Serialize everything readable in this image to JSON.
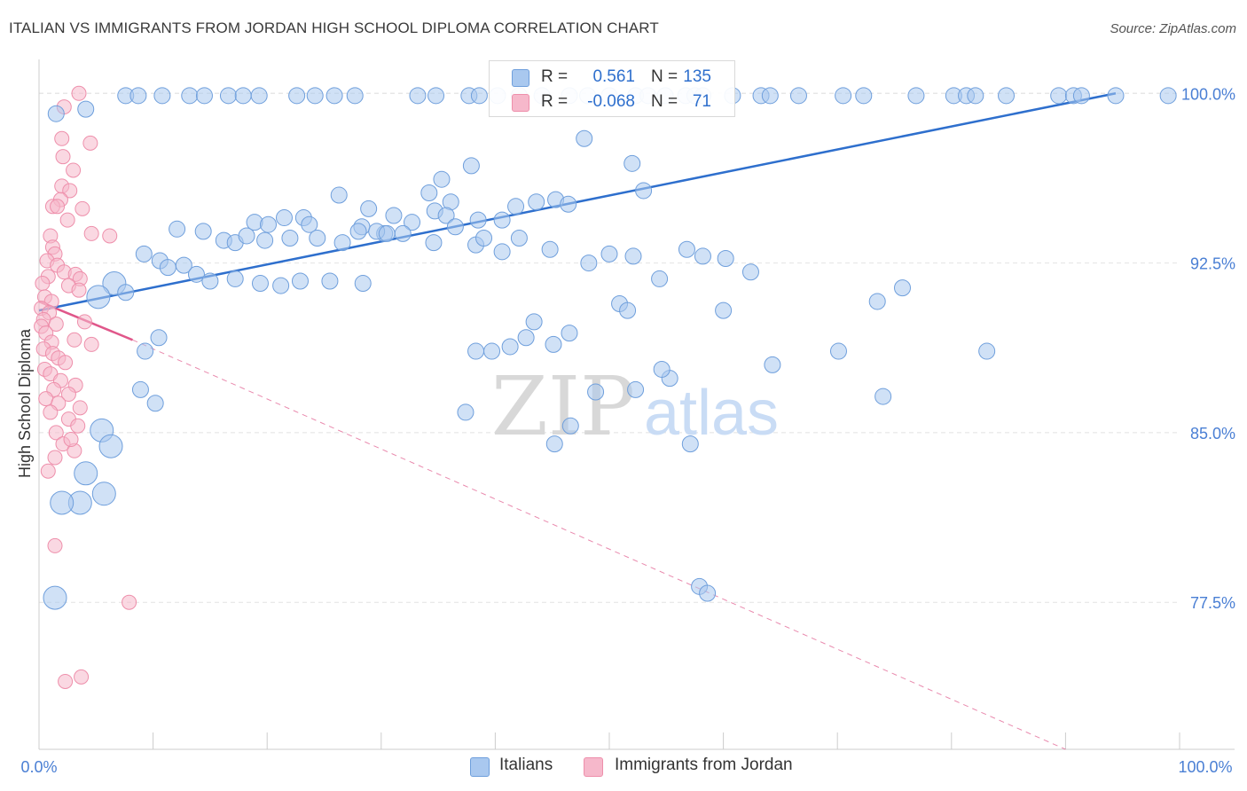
{
  "title": "ITALIAN VS IMMIGRANTS FROM JORDAN HIGH SCHOOL DIPLOMA CORRELATION CHART",
  "source": "Source: ZipAtlas.com",
  "watermark": {
    "zip": "ZIP",
    "atlas": "atlas"
  },
  "legend": {
    "r_label": "R =",
    "n_label": "N =",
    "rows": [
      {
        "r": "0.561",
        "n": "135"
      },
      {
        "r": "-0.068",
        "n": "71"
      }
    ]
  },
  "bottom_legend": [
    "Italians",
    "Immigrants from Jordan"
  ],
  "colors": {
    "blue_fill": "#a9c8ef",
    "blue_edge": "#6f9fdc",
    "blue_line": "#2e6fcd",
    "pink_fill": "#f6b8cb",
    "pink_edge": "#ee8fab",
    "pink_line": "#e0578a",
    "axis_text": "#4a7fd4",
    "grid": "#e2e2e2"
  },
  "chart_data": {
    "type": "scatter",
    "title": "ITALIAN VS IMMIGRANTS FROM JORDAN HIGH SCHOOL DIPLOMA CORRELATION CHART",
    "xlabel": "",
    "ylabel": "High School Diploma",
    "xlim": [
      0,
      100
    ],
    "ylim": [
      71.0,
      101.5
    ],
    "x_tick_labels": [
      "0.0%",
      "100.0%"
    ],
    "y_ticks": [
      77.5,
      85.0,
      92.5,
      100.0
    ],
    "y_tick_labels": [
      "77.5%",
      "85.0%",
      "92.5%",
      "100.0%"
    ],
    "grid": true,
    "legend_position": "top-center",
    "series": [
      {
        "name": "Italians",
        "r": 0.561,
        "n": 135,
        "trend": {
          "x": [
            0,
            94.4
          ],
          "y": [
            90.4,
            100.0
          ]
        },
        "points": [
          [
            1.5,
            99.1
          ],
          [
            4.1,
            99.3
          ],
          [
            7.6,
            99.9
          ],
          [
            8.7,
            99.9
          ],
          [
            10.8,
            99.9
          ],
          [
            13.2,
            99.9
          ],
          [
            14.5,
            99.9
          ],
          [
            16.6,
            99.9
          ],
          [
            17.9,
            99.9
          ],
          [
            19.3,
            99.9
          ],
          [
            22.6,
            99.9
          ],
          [
            24.2,
            99.9
          ],
          [
            25.9,
            99.9
          ],
          [
            27.7,
            99.9
          ],
          [
            33.2,
            99.9
          ],
          [
            34.8,
            99.9
          ],
          [
            37.7,
            99.9
          ],
          [
            38.6,
            99.9
          ],
          [
            40.2,
            99.9
          ],
          [
            42.1,
            99.9
          ],
          [
            44.1,
            99.9
          ],
          [
            46.5,
            99.9
          ],
          [
            48.1,
            99.9
          ],
          [
            50.0,
            99.9
          ],
          [
            52.3,
            99.9
          ],
          [
            53.4,
            99.9
          ],
          [
            54.9,
            99.9
          ],
          [
            56.7,
            99.9
          ],
          [
            57.5,
            99.9
          ],
          [
            58.2,
            99.9
          ],
          [
            60.8,
            99.9
          ],
          [
            63.3,
            99.9
          ],
          [
            64.1,
            99.9
          ],
          [
            66.6,
            99.9
          ],
          [
            70.5,
            99.9
          ],
          [
            72.3,
            99.9
          ],
          [
            76.9,
            99.9
          ],
          [
            80.2,
            99.9
          ],
          [
            81.3,
            99.9
          ],
          [
            82.1,
            99.9
          ],
          [
            84.8,
            99.9
          ],
          [
            89.4,
            99.9
          ],
          [
            90.7,
            99.9
          ],
          [
            91.4,
            99.9
          ],
          [
            94.4,
            99.9
          ],
          [
            99.0,
            99.9
          ],
          [
            47.8,
            98.0
          ],
          [
            52.0,
            96.9
          ],
          [
            37.9,
            96.8
          ],
          [
            35.3,
            96.2
          ],
          [
            53.0,
            95.7
          ],
          [
            34.2,
            95.6
          ],
          [
            26.3,
            95.5
          ],
          [
            36.1,
            95.2
          ],
          [
            34.7,
            94.8
          ],
          [
            45.3,
            95.3
          ],
          [
            46.4,
            95.1
          ],
          [
            41.8,
            95.0
          ],
          [
            28.9,
            94.9
          ],
          [
            31.1,
            94.6
          ],
          [
            35.7,
            94.6
          ],
          [
            38.5,
            94.4
          ],
          [
            23.2,
            94.5
          ],
          [
            32.7,
            94.3
          ],
          [
            36.5,
            94.1
          ],
          [
            30.3,
            93.8
          ],
          [
            40.6,
            94.4
          ],
          [
            18.9,
            94.3
          ],
          [
            21.5,
            94.5
          ],
          [
            23.7,
            94.2
          ],
          [
            20.1,
            94.2
          ],
          [
            28.3,
            94.1
          ],
          [
            24.4,
            93.6
          ],
          [
            28.0,
            93.9
          ],
          [
            29.6,
            93.9
          ],
          [
            43.6,
            95.2
          ],
          [
            12.1,
            94.0
          ],
          [
            14.4,
            93.9
          ],
          [
            16.2,
            93.5
          ],
          [
            17.2,
            93.4
          ],
          [
            18.2,
            93.7
          ],
          [
            19.8,
            93.5
          ],
          [
            22.0,
            93.6
          ],
          [
            26.6,
            93.4
          ],
          [
            30.5,
            93.8
          ],
          [
            31.9,
            93.8
          ],
          [
            34.6,
            93.4
          ],
          [
            38.3,
            93.3
          ],
          [
            40.6,
            93.0
          ],
          [
            39.0,
            93.6
          ],
          [
            42.1,
            93.6
          ],
          [
            44.8,
            93.1
          ],
          [
            50.0,
            92.9
          ],
          [
            52.1,
            92.8
          ],
          [
            56.8,
            93.1
          ],
          [
            58.2,
            92.8
          ],
          [
            60.2,
            92.7
          ],
          [
            62.4,
            92.1
          ],
          [
            54.4,
            91.8
          ],
          [
            48.2,
            92.5
          ],
          [
            9.2,
            92.9
          ],
          [
            10.6,
            92.6
          ],
          [
            11.3,
            92.3
          ],
          [
            12.7,
            92.4
          ],
          [
            13.8,
            92.0
          ],
          [
            15.0,
            91.7
          ],
          [
            17.2,
            91.8
          ],
          [
            19.4,
            91.6
          ],
          [
            21.2,
            91.5
          ],
          [
            22.9,
            91.7
          ],
          [
            25.5,
            91.7
          ],
          [
            28.4,
            91.6
          ],
          [
            6.6,
            91.6
          ],
          [
            7.6,
            91.2
          ],
          [
            5.2,
            91.0
          ],
          [
            50.9,
            90.7
          ],
          [
            51.6,
            90.4
          ],
          [
            42.7,
            89.2
          ],
          [
            43.4,
            89.9
          ],
          [
            45.1,
            88.9
          ],
          [
            46.5,
            89.4
          ],
          [
            38.3,
            88.6
          ],
          [
            39.7,
            88.6
          ],
          [
            41.3,
            88.8
          ],
          [
            37.4,
            85.9
          ],
          [
            46.6,
            85.3
          ],
          [
            70.1,
            88.6
          ],
          [
            83.1,
            88.6
          ],
          [
            74.0,
            86.6
          ],
          [
            75.7,
            91.4
          ],
          [
            73.5,
            90.8
          ],
          [
            60.0,
            90.4
          ],
          [
            64.3,
            88.0
          ],
          [
            45.2,
            84.5
          ],
          [
            57.1,
            84.5
          ],
          [
            55.3,
            87.4
          ],
          [
            52.3,
            86.9
          ],
          [
            54.6,
            87.8
          ],
          [
            48.8,
            86.8
          ],
          [
            9.3,
            88.6
          ],
          [
            10.5,
            89.2
          ],
          [
            8.9,
            86.9
          ],
          [
            10.2,
            86.3
          ],
          [
            5.5,
            85.1
          ],
          [
            6.3,
            84.4
          ],
          [
            4.1,
            83.2
          ],
          [
            5.7,
            82.3
          ],
          [
            3.6,
            81.9
          ],
          [
            2.0,
            81.9
          ],
          [
            1.4,
            77.7
          ],
          [
            57.9,
            78.2
          ],
          [
            58.6,
            77.9
          ]
        ],
        "size_hint": "point radius ~9px; a few larger points near x=0-6"
      },
      {
        "name": "Immigrants from Jordan",
        "r": -0.068,
        "n": 71,
        "trend": {
          "x": [
            0,
            8.2
          ],
          "y": [
            90.8,
            89.1
          ],
          "dashed_extension_to": [
            90.0,
            71.0
          ]
        },
        "points": [
          [
            3.5,
            100.0
          ],
          [
            2.2,
            99.4
          ],
          [
            2.0,
            98.0
          ],
          [
            4.5,
            97.8
          ],
          [
            2.1,
            97.2
          ],
          [
            3.0,
            96.6
          ],
          [
            2.0,
            95.9
          ],
          [
            2.7,
            95.7
          ],
          [
            1.9,
            95.3
          ],
          [
            1.2,
            95.0
          ],
          [
            1.6,
            95.0
          ],
          [
            3.8,
            94.9
          ],
          [
            2.5,
            94.4
          ],
          [
            4.6,
            93.8
          ],
          [
            1.0,
            93.7
          ],
          [
            6.2,
            93.7
          ],
          [
            1.2,
            93.2
          ],
          [
            1.4,
            92.9
          ],
          [
            0.7,
            92.6
          ],
          [
            1.6,
            92.4
          ],
          [
            2.2,
            92.1
          ],
          [
            0.8,
            91.9
          ],
          [
            3.2,
            92.0
          ],
          [
            3.6,
            91.8
          ],
          [
            0.3,
            91.6
          ],
          [
            2.6,
            91.5
          ],
          [
            3.5,
            91.3
          ],
          [
            0.5,
            91.0
          ],
          [
            1.1,
            90.8
          ],
          [
            0.2,
            90.5
          ],
          [
            0.9,
            90.3
          ],
          [
            0.4,
            90.0
          ],
          [
            1.5,
            89.8
          ],
          [
            4.0,
            89.9
          ],
          [
            0.2,
            89.7
          ],
          [
            0.6,
            89.4
          ],
          [
            1.1,
            89.0
          ],
          [
            3.1,
            89.1
          ],
          [
            4.6,
            88.9
          ],
          [
            0.4,
            88.7
          ],
          [
            1.2,
            88.5
          ],
          [
            1.7,
            88.3
          ],
          [
            2.3,
            88.1
          ],
          [
            0.5,
            87.8
          ],
          [
            1.0,
            87.6
          ],
          [
            1.9,
            87.3
          ],
          [
            3.2,
            87.1
          ],
          [
            1.3,
            86.9
          ],
          [
            2.6,
            86.7
          ],
          [
            0.6,
            86.5
          ],
          [
            1.7,
            86.3
          ],
          [
            3.6,
            86.1
          ],
          [
            1.0,
            85.9
          ],
          [
            2.6,
            85.6
          ],
          [
            3.4,
            85.3
          ],
          [
            1.5,
            85.0
          ],
          [
            2.1,
            84.5
          ],
          [
            3.1,
            84.2
          ],
          [
            1.4,
            83.9
          ],
          [
            2.8,
            84.7
          ],
          [
            0.8,
            83.3
          ],
          [
            1.4,
            80.0
          ],
          [
            7.9,
            77.5
          ],
          [
            2.3,
            74.0
          ],
          [
            3.7,
            74.2
          ]
        ],
        "size_hint": "point radius ~8px"
      }
    ]
  }
}
